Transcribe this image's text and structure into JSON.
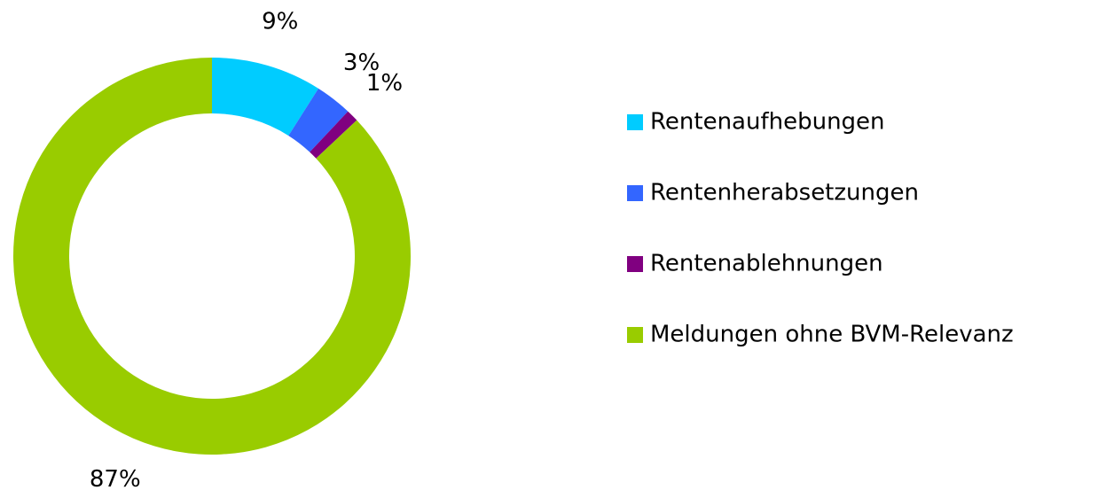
{
  "chart_data": {
    "type": "donut",
    "categories": [
      "Rentenaufhebungen",
      "Rentenherabsetzungen",
      "Rentenablehnungen",
      "Meldungen ohne BVM-Relevanz"
    ],
    "values": [
      9,
      3,
      1,
      87
    ],
    "value_labels": [
      "9%",
      "3%",
      "1%",
      "87%"
    ],
    "colors": [
      "#00ccff",
      "#3366ff",
      "#800080",
      "#99cc00"
    ],
    "legend": "right"
  }
}
